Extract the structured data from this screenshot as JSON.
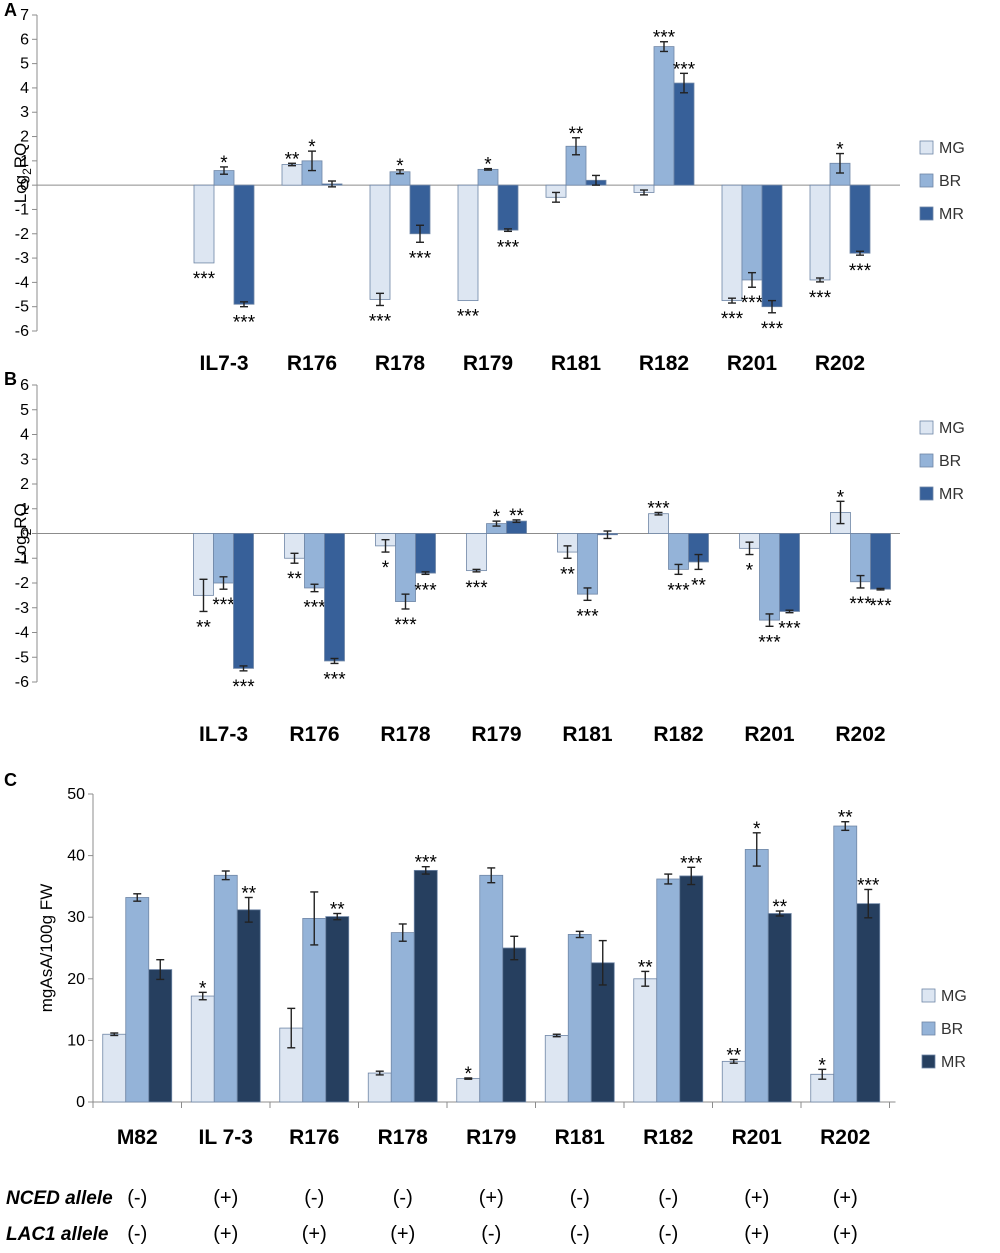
{
  "colors": {
    "MG": "#dde6f2",
    "BR": "#94b3d8",
    "MR_A": "#376099",
    "MR_B": "#376099",
    "MR_C": "#263f5f",
    "border": "#6f86a6"
  },
  "chart_data": [
    {
      "panel": "A",
      "type": "bar",
      "ylabel": "Log2RQ",
      "ylim": [
        -6,
        7
      ],
      "yticks": [
        "-6",
        "-5",
        "-4",
        "-3",
        "-2",
        "-1",
        "0",
        "1",
        "2",
        "3",
        "4",
        "5",
        "6",
        "7"
      ],
      "categories": [
        "IL7-3",
        "R176",
        "R178",
        "R179",
        "R181",
        "R182",
        "R201",
        "R202"
      ],
      "legend": [
        "MG",
        "BR",
        "MR"
      ],
      "series": [
        {
          "name": "MG",
          "values": [
            -3.2,
            0.85,
            -4.7,
            -4.75,
            -0.5,
            -0.3,
            -4.75,
            -3.9
          ],
          "errors": [
            0,
            0.05,
            0.25,
            0,
            0.2,
            0.1,
            0.1,
            0.08
          ],
          "sig": [
            "***",
            "**",
            "***",
            "***",
            "",
            "",
            "***",
            "***"
          ]
        },
        {
          "name": "BR",
          "values": [
            0.6,
            1.0,
            0.55,
            0.65,
            1.6,
            5.7,
            -3.9,
            0.9
          ],
          "errors": [
            0.15,
            0.4,
            0.08,
            0.03,
            0.35,
            0.2,
            0.3,
            0.4
          ],
          "sig": [
            "*",
            "*",
            "*",
            "*",
            "**",
            "***",
            "***",
            "*"
          ]
        },
        {
          "name": "MR",
          "values": [
            -4.9,
            0.05,
            -2.0,
            -1.85,
            0.2,
            4.2,
            -5.0,
            -2.8
          ],
          "errors": [
            0.1,
            0.12,
            0.35,
            0.05,
            0.2,
            0.4,
            0.25,
            0.08
          ],
          "sig": [
            "***",
            "",
            "***",
            "***",
            "",
            "***",
            "***",
            "***"
          ]
        }
      ]
    },
    {
      "panel": "B",
      "type": "bar",
      "ylabel": "Log2RQ",
      "ylim": [
        -6,
        6
      ],
      "yticks": [
        "-6",
        "-5",
        "-4",
        "-3",
        "-2",
        "-1",
        "0",
        "1",
        "2",
        "3",
        "4",
        "5",
        "6"
      ],
      "categories": [
        "IL7-3",
        "R176",
        "R178",
        "R179",
        "R181",
        "R182",
        "R201",
        "R202"
      ],
      "legend": [
        "MG",
        "BR",
        "MR"
      ],
      "series": [
        {
          "name": "MG",
          "values": [
            -2.5,
            -1.0,
            -0.5,
            -1.5,
            -0.75,
            0.8,
            -0.6,
            0.85
          ],
          "errors": [
            0.65,
            0.2,
            0.25,
            0.05,
            0.25,
            0.05,
            0.25,
            0.45
          ],
          "sig": [
            "**",
            "**",
            "*",
            "***",
            "**",
            "***",
            "*",
            "*"
          ]
        },
        {
          "name": "BR",
          "values": [
            -2.0,
            -2.2,
            -2.75,
            0.4,
            -2.45,
            -1.45,
            -3.5,
            -1.95
          ],
          "errors": [
            0.25,
            0.15,
            0.3,
            0.1,
            0.25,
            0.2,
            0.25,
            0.25
          ],
          "sig": [
            "***",
            "***",
            "***",
            "*",
            "***",
            "***",
            "***",
            "***"
          ]
        },
        {
          "name": "MR",
          "values": [
            -5.45,
            -5.15,
            -1.6,
            0.5,
            -0.05,
            -1.15,
            -3.15,
            -2.25
          ],
          "errors": [
            0.1,
            0.1,
            0.05,
            0.05,
            0.15,
            0.3,
            0.05,
            0.03
          ],
          "sig": [
            "***",
            "***",
            "***",
            "**",
            "",
            "**",
            "***",
            "***"
          ]
        }
      ]
    },
    {
      "panel": "C",
      "type": "bar",
      "ylabel": "mgAsA/100g FW",
      "ylim": [
        0,
        50
      ],
      "yticks": [
        "0",
        "10",
        "20",
        "30",
        "40",
        "50"
      ],
      "categories": [
        "M82",
        "IL 7-3",
        "R176",
        "R178",
        "R179",
        "R181",
        "R182",
        "R201",
        "R202"
      ],
      "legend": [
        "MG",
        "BR",
        "MR"
      ],
      "series": [
        {
          "name": "MG",
          "values": [
            11,
            17.2,
            12,
            4.7,
            3.8,
            10.8,
            20,
            6.6,
            4.5
          ],
          "errors": [
            0.2,
            0.6,
            3.2,
            0.3,
            0.1,
            0.2,
            1.2,
            0.3,
            0.8
          ],
          "sig": [
            "",
            "*",
            "",
            "",
            "*",
            "",
            "**",
            "**",
            "*"
          ]
        },
        {
          "name": "BR",
          "values": [
            33.2,
            36.8,
            29.8,
            27.5,
            36.8,
            27.2,
            36.2,
            41,
            44.8
          ],
          "errors": [
            0.6,
            0.7,
            4.3,
            1.4,
            1.2,
            0.5,
            0.8,
            2.7,
            0.7
          ],
          "sig": [
            "",
            "",
            "",
            "",
            "",
            "",
            "",
            "*",
            "**"
          ]
        },
        {
          "name": "MR",
          "values": [
            21.5,
            31.2,
            30.1,
            37.6,
            25,
            22.6,
            36.7,
            30.6,
            32.2
          ],
          "errors": [
            1.6,
            2.0,
            0.5,
            0.6,
            1.9,
            3.6,
            1.4,
            0.4,
            2.3
          ],
          "sig": [
            "",
            "**",
            "**",
            "***",
            "",
            "",
            "***",
            "**",
            "***"
          ]
        }
      ]
    }
  ],
  "alleles": {
    "nced_label": "NCED allele",
    "lac1_label": "LAC1 allele",
    "nced": [
      "(-)",
      "(+)",
      "(-)",
      "(-)",
      "(+)",
      "(-)",
      "(-)",
      "(+)",
      "(+)"
    ],
    "lac1": [
      "(-)",
      "(+)",
      "(+)",
      "(+)",
      "(-)",
      "(-)",
      "(-)",
      "(+)",
      "(+)"
    ]
  }
}
